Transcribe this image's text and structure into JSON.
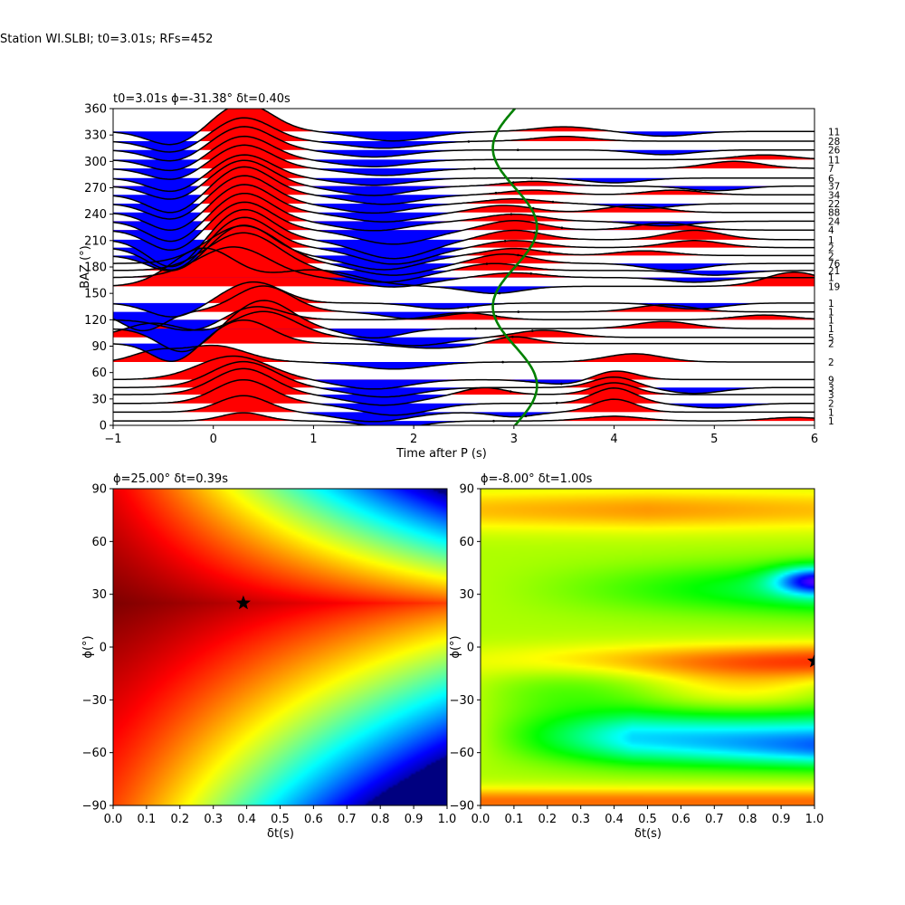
{
  "suptitle": "Station WI.SLBI; t0=3.01s; RFs=452",
  "chart_data": [
    {
      "type": "line",
      "title": "t0=3.01s ϕ=-31.38° δt=0.40s",
      "xlabel": "Time after P (s)",
      "ylabel": "BAZ (°)",
      "xlim": [
        -1,
        6
      ],
      "ylim": [
        0,
        360
      ],
      "xticks": [
        "-1",
        "0",
        "1",
        "2",
        "3",
        "4",
        "5",
        "6"
      ],
      "yticks": [
        "0",
        "30",
        "60",
        "90",
        "120",
        "150",
        "180",
        "210",
        "240",
        "270",
        "300",
        "330",
        "360"
      ],
      "positive_fill_color": "#ff0000",
      "negative_fill_color": "#0000ff",
      "trace_color": "#000000",
      "t0_curve_color": "#008000",
      "t0_curve": {
        "center": 3.01,
        "amplitude": 0.22,
        "period_deg": 180
      },
      "traces": [
        {
          "baz": 5,
          "count": "1",
          "a": [
            [
              0.3,
              0.35,
              0.3
            ],
            [
              1.8,
              -0.3,
              0.4
            ],
            [
              4.0,
              0.2,
              0.4
            ],
            [
              5.8,
              0.15,
              0.4
            ]
          ]
        },
        {
          "baz": 15,
          "count": "1",
          "a": [
            [
              0.3,
              0.7,
              0.35
            ],
            [
              1.6,
              -0.4,
              0.5
            ],
            [
              4.0,
              0.55,
              0.3
            ],
            [
              3.0,
              -0.2,
              0.3
            ]
          ]
        },
        {
          "baz": 25,
          "count": "2",
          "a": [
            [
              0.3,
              1.0,
              0.4
            ],
            [
              1.8,
              -0.5,
              0.5
            ],
            [
              4.0,
              0.65,
              0.3
            ],
            [
              5.0,
              -0.2,
              0.4
            ]
          ]
        },
        {
          "baz": 35,
          "count": "3",
          "a": [
            [
              0.3,
              1.1,
              0.42
            ],
            [
              1.7,
              -0.45,
              0.5
            ],
            [
              2.7,
              0.3,
              0.3
            ],
            [
              4.0,
              0.5,
              0.3
            ]
          ]
        },
        {
          "baz": 43,
          "count": "3",
          "a": [
            [
              0.3,
              1.1,
              0.45
            ],
            [
              1.7,
              -0.4,
              0.5
            ],
            [
              4.0,
              0.45,
              0.3
            ],
            [
              4.8,
              -0.25,
              0.4
            ]
          ]
        },
        {
          "baz": 52,
          "count": "9",
          "a": [
            [
              0.2,
              1.0,
              0.5
            ],
            [
              1.6,
              -0.4,
              0.5
            ],
            [
              3.5,
              -0.2,
              0.4
            ],
            [
              4.0,
              0.4,
              0.3
            ]
          ]
        },
        {
          "baz": 72,
          "count": "2",
          "a": [
            [
              -0.6,
              0.4,
              0.3
            ],
            [
              0.0,
              0.7,
              0.45
            ],
            [
              1.8,
              -0.3,
              0.5
            ],
            [
              4.2,
              0.35,
              0.4
            ]
          ]
        },
        {
          "baz": 93,
          "count": "2",
          "a": [
            [
              -0.4,
              -0.8,
              0.3
            ],
            [
              0.3,
              1.0,
              0.4
            ],
            [
              2.2,
              -0.2,
              0.5
            ],
            [
              3.0,
              0.3,
              0.3
            ]
          ]
        },
        {
          "baz": 100,
          "count": "5",
          "a": [
            [
              -0.6,
              0.6,
              0.4
            ],
            [
              0.5,
              1.1,
              0.45
            ],
            [
              2.0,
              -0.35,
              0.5
            ],
            [
              3.3,
              0.3,
              0.4
            ]
          ]
        },
        {
          "baz": 110,
          "count": "1",
          "a": [
            [
              -0.3,
              -1.0,
              0.35
            ],
            [
              0.5,
              1.2,
              0.4
            ],
            [
              1.6,
              -0.4,
              0.4
            ],
            [
              4.5,
              0.3,
              0.4
            ]
          ]
        },
        {
          "baz": 120,
          "count": "1",
          "a": [
            [
              -0.2,
              -0.5,
              0.4
            ],
            [
              0.4,
              0.6,
              0.4
            ],
            [
              2.5,
              0.3,
              0.4
            ],
            [
              5.5,
              0.2,
              0.4
            ]
          ]
        },
        {
          "baz": 129,
          "count": "1",
          "a": [
            [
              -0.7,
              -0.8,
              0.3
            ],
            [
              0.5,
              1.1,
              0.4
            ],
            [
              2.0,
              -0.3,
              0.4
            ],
            [
              4.5,
              0.3,
              0.4
            ]
          ]
        },
        {
          "baz": 139,
          "count": "1",
          "a": [
            [
              -0.4,
              -0.6,
              0.35
            ],
            [
              0.4,
              0.9,
              0.4
            ],
            [
              2.3,
              -0.25,
              0.4
            ],
            [
              4.8,
              -0.25,
              0.4
            ]
          ]
        },
        {
          "baz": 158,
          "count": "19",
          "a": [
            [
              -0.1,
              1.6,
              0.45
            ],
            [
              1.0,
              0.7,
              0.6
            ],
            [
              2.8,
              -0.3,
              0.4
            ],
            [
              5.8,
              0.6,
              0.4
            ]
          ]
        },
        {
          "baz": 168,
          "count": "1",
          "a": [
            [
              0.2,
              1.3,
              0.5
            ],
            [
              1.8,
              -0.4,
              0.5
            ],
            [
              3.0,
              0.2,
              0.4
            ],
            [
              4.8,
              -0.2,
              0.4
            ]
          ]
        },
        {
          "baz": 176,
          "count": "21",
          "a": [
            [
              0.3,
              1.6,
              0.5
            ],
            [
              1.7,
              -0.5,
              0.5
            ],
            [
              2.8,
              0.3,
              0.4
            ],
            [
              5.0,
              -0.2,
              0.4
            ]
          ]
        },
        {
          "baz": 184,
          "count": "76",
          "a": [
            [
              0.3,
              1.6,
              0.5
            ],
            [
              1.8,
              -0.5,
              0.5
            ],
            [
              2.9,
              0.4,
              0.4
            ],
            [
              4.6,
              -0.3,
              0.4
            ]
          ]
        },
        {
          "baz": 193,
          "count": "2",
          "a": [
            [
              -0.4,
              -0.7,
              0.35
            ],
            [
              0.3,
              1.3,
              0.4
            ],
            [
              1.7,
              -0.6,
              0.5
            ],
            [
              3.0,
              0.3,
              0.4
            ],
            [
              4.3,
              0.2,
              0.4
            ]
          ]
        },
        {
          "baz": 202,
          "count": "2",
          "a": [
            [
              -0.4,
              -1.0,
              0.35
            ],
            [
              0.3,
              1.3,
              0.4
            ],
            [
              1.8,
              -0.7,
              0.5
            ],
            [
              3.0,
              0.3,
              0.4
            ],
            [
              4.8,
              0.3,
              0.4
            ]
          ]
        },
        {
          "baz": 211,
          "count": "1",
          "a": [
            [
              -0.4,
              -1.2,
              0.35
            ],
            [
              0.3,
              1.3,
              0.4
            ],
            [
              1.8,
              -0.8,
              0.5
            ],
            [
              3.0,
              0.4,
              0.4
            ],
            [
              4.8,
              0.4,
              0.4
            ]
          ]
        },
        {
          "baz": 222,
          "count": "4",
          "a": [
            [
              -0.4,
              -0.9,
              0.35
            ],
            [
              0.3,
              1.2,
              0.4
            ],
            [
              1.8,
              -0.6,
              0.5
            ],
            [
              3.0,
              0.4,
              0.4
            ],
            [
              4.5,
              0.3,
              0.4
            ]
          ]
        },
        {
          "baz": 232,
          "count": "24",
          "a": [
            [
              -0.4,
              -0.9,
              0.35
            ],
            [
              0.3,
              1.2,
              0.4
            ],
            [
              1.6,
              -0.4,
              0.5
            ],
            [
              3.0,
              0.3,
              0.4
            ],
            [
              4.5,
              -0.2,
              0.4
            ]
          ]
        },
        {
          "baz": 242,
          "count": "88",
          "a": [
            [
              -0.4,
              -0.8,
              0.35
            ],
            [
              0.3,
              1.2,
              0.4
            ],
            [
              1.7,
              -0.4,
              0.5
            ],
            [
              2.9,
              0.3,
              0.4
            ],
            [
              4.2,
              0.3,
              0.4
            ]
          ]
        },
        {
          "baz": 252,
          "count": "22",
          "a": [
            [
              -0.4,
              -0.7,
              0.35
            ],
            [
              0.3,
              1.2,
              0.4
            ],
            [
              1.6,
              -0.4,
              0.5
            ],
            [
              3.0,
              0.2,
              0.4
            ],
            [
              4.3,
              -0.2,
              0.4
            ]
          ]
        },
        {
          "baz": 262,
          "count": "34",
          "a": [
            [
              -0.4,
              -0.8,
              0.35
            ],
            [
              0.3,
              1.2,
              0.4
            ],
            [
              1.7,
              -0.4,
              0.5
            ],
            [
              3.2,
              0.2,
              0.4
            ],
            [
              4.6,
              0.2,
              0.4
            ]
          ]
        },
        {
          "baz": 272,
          "count": "37",
          "a": [
            [
              -0.4,
              -0.6,
              0.35
            ],
            [
              0.3,
              1.1,
              0.4
            ],
            [
              1.6,
              -0.4,
              0.5
            ],
            [
              3.2,
              0.2,
              0.4
            ],
            [
              5.0,
              -0.2,
              0.4
            ]
          ]
        },
        {
          "baz": 281,
          "count": "6",
          "a": [
            [
              -0.4,
              -0.6,
              0.35
            ],
            [
              0.3,
              1.0,
              0.4
            ],
            [
              1.6,
              -0.3,
              0.5
            ],
            [
              4.0,
              -0.2,
              0.4
            ]
          ]
        },
        {
          "baz": 292,
          "count": "7",
          "a": [
            [
              -0.4,
              -0.5,
              0.35
            ],
            [
              0.3,
              1.0,
              0.4
            ],
            [
              1.7,
              -0.3,
              0.5
            ],
            [
              5.2,
              0.3,
              0.4
            ]
          ]
        },
        {
          "baz": 302,
          "count": "11",
          "a": [
            [
              -0.4,
              -0.5,
              0.35
            ],
            [
              0.3,
              1.0,
              0.4
            ],
            [
              1.6,
              -0.3,
              0.5
            ],
            [
              5.5,
              0.2,
              0.4
            ]
          ]
        },
        {
          "baz": 313,
          "count": "26",
          "a": [
            [
              -0.4,
              -0.5,
              0.35
            ],
            [
              0.3,
              1.0,
              0.4
            ],
            [
              1.6,
              -0.3,
              0.5
            ],
            [
              4.5,
              -0.2,
              0.4
            ]
          ]
        },
        {
          "baz": 323,
          "count": "28",
          "a": [
            [
              -0.4,
              -0.5,
              0.35
            ],
            [
              0.3,
              1.0,
              0.4
            ],
            [
              1.7,
              -0.3,
              0.5
            ],
            [
              3.5,
              0.2,
              0.4
            ]
          ]
        },
        {
          "baz": 334,
          "count": "11",
          "a": [
            [
              -0.4,
              -0.6,
              0.35
            ],
            [
              0.3,
              1.2,
              0.4
            ],
            [
              1.8,
              -0.4,
              0.5
            ],
            [
              3.5,
              0.2,
              0.4
            ],
            [
              4.5,
              -0.2,
              0.4
            ]
          ]
        }
      ]
    },
    {
      "type": "heatmap",
      "title": "ϕ=25.00° δt=0.39s",
      "xlabel": "δt(s)",
      "ylabel": "ϕ(°)",
      "xlim": [
        0,
        1
      ],
      "ylim": [
        -90,
        90
      ],
      "xticks": [
        "0.0",
        "0.1",
        "0.2",
        "0.3",
        "0.4",
        "0.5",
        "0.6",
        "0.7",
        "0.8",
        "0.9",
        "1.0"
      ],
      "yticks": [
        "−90",
        "−60",
        "−30",
        "0",
        "30",
        "60",
        "90"
      ],
      "colormap": "jet-reversed",
      "best": {
        "dt": 0.39,
        "phi": 25.0
      },
      "marker": "star"
    },
    {
      "type": "heatmap",
      "title": "ϕ=-8.00° δt=1.00s",
      "xlabel": "δt(s)",
      "ylabel": "ϕ(°)",
      "xlim": [
        0,
        1
      ],
      "ylim": [
        -90,
        90
      ],
      "xticks": [
        "0.0",
        "0.1",
        "0.2",
        "0.3",
        "0.4",
        "0.5",
        "0.6",
        "0.7",
        "0.8",
        "0.9",
        "1.0"
      ],
      "yticks": [
        "−90",
        "−60",
        "−30",
        "0",
        "30",
        "60",
        "90"
      ],
      "colormap": "hsv",
      "best": {
        "dt": 1.0,
        "phi": -8.0
      },
      "marker": "star"
    }
  ]
}
